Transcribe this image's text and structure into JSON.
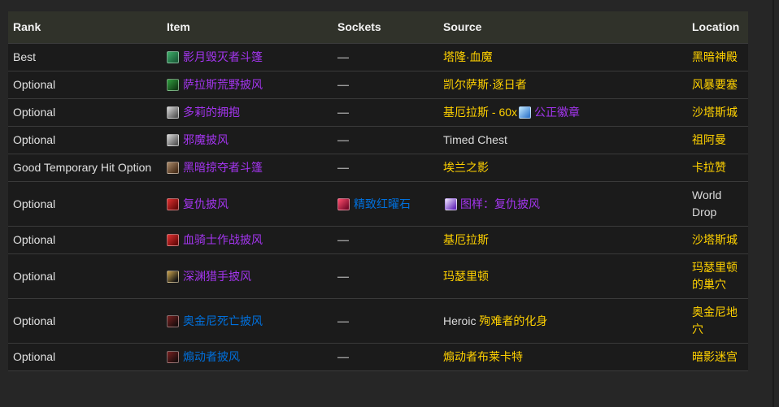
{
  "palette": {
    "epic": "#a335ee",
    "rare": "#0070dd",
    "yellow": "#ffd100",
    "white": "#dcdcdc",
    "gray_dash": "#9d9d9d",
    "header_bg": "#30322a",
    "row_bg": "#1b1b1b",
    "page_bg": "#262626",
    "separator": "#3a3a3a"
  },
  "icons": {
    "cloak-teal": {
      "colors": [
        "#3fae6a",
        "#1b5e3a"
      ]
    },
    "cloak-green": {
      "colors": [
        "#2f9e3f",
        "#123f16"
      ]
    },
    "cloak-gray": {
      "colors": [
        "#d8d8d8",
        "#5a5a5a"
      ]
    },
    "cloak-brown": {
      "colors": [
        "#a98a6a",
        "#4a2f1a"
      ]
    },
    "cloak-red": {
      "colors": [
        "#e03030",
        "#6a0a0a"
      ]
    },
    "cloak-dark": {
      "colors": [
        "#caa24a",
        "#141414"
      ]
    },
    "cloak-darkred": {
      "colors": [
        "#7a2020",
        "#1a0d0d"
      ]
    },
    "gem-red": {
      "colors": [
        "#ff4d6d",
        "#7a0a2a"
      ]
    },
    "badge-justice": {
      "colors": [
        "#bfe8ff",
        "#3c7fd0"
      ]
    },
    "pattern-cloak": {
      "colors": [
        "#f0e8ff",
        "#6a2fbf"
      ]
    }
  },
  "table": {
    "columns": [
      "Rank",
      "Item",
      "Sockets",
      "Source",
      "Location"
    ],
    "rows": [
      {
        "rank": "Best",
        "item": {
          "label": "影月毁灭者斗篷",
          "quality": "epic",
          "icon": "cloak-teal"
        },
        "sockets": [
          {
            "dash": true
          }
        ],
        "source": [
          {
            "text": "塔隆·血魔",
            "color": "yellow",
            "link": true
          }
        ],
        "location": {
          "text": "黑暗神殿",
          "color": "yellow",
          "link": true
        }
      },
      {
        "rank": "Optional",
        "item": {
          "label": "萨拉斯荒野披风",
          "quality": "epic",
          "icon": "cloak-green"
        },
        "sockets": [
          {
            "dash": true
          }
        ],
        "source": [
          {
            "text": "凯尔萨斯·逐日者",
            "color": "yellow",
            "link": true
          }
        ],
        "location": {
          "text": "风暴要塞",
          "color": "yellow",
          "link": true
        }
      },
      {
        "rank": "Optional",
        "item": {
          "label": "多莉的拥抱",
          "quality": "epic",
          "icon": "cloak-gray"
        },
        "sockets": [
          {
            "dash": true
          }
        ],
        "source": [
          {
            "text": "基厄拉斯 - 60x",
            "color": "yellow",
            "link": true
          },
          {
            "icon": "badge-justice"
          },
          {
            "text": "公正徽章",
            "color": "epic",
            "link": true
          }
        ],
        "location": {
          "text": "沙塔斯城",
          "color": "yellow",
          "link": true
        }
      },
      {
        "rank": "Optional",
        "item": {
          "label": "邪魔披风",
          "quality": "epic",
          "icon": "cloak-gray"
        },
        "sockets": [
          {
            "dash": true
          }
        ],
        "source": [
          {
            "text": "Timed Chest",
            "color": "white",
            "link": false
          }
        ],
        "location": {
          "text": "祖阿曼",
          "color": "yellow",
          "link": true
        }
      },
      {
        "rank": "Good Temporary Hit Option",
        "item": {
          "label": "黑暗掠夺者斗篷",
          "quality": "epic",
          "icon": "cloak-brown"
        },
        "sockets": [
          {
            "dash": true
          }
        ],
        "source": [
          {
            "text": "埃兰之影",
            "color": "yellow",
            "link": true
          }
        ],
        "location": {
          "text": "卡拉赞",
          "color": "yellow",
          "link": true
        }
      },
      {
        "rank": "Optional",
        "item": {
          "label": "复仇披风",
          "quality": "epic",
          "icon": "cloak-red"
        },
        "sockets": [
          {
            "icon": "gem-red"
          },
          {
            "text": "精致红曜石",
            "color": "rare",
            "link": true
          }
        ],
        "source": [
          {
            "icon": "pattern-cloak"
          },
          {
            "text": "图样：复仇披风",
            "color": "epic",
            "link": true
          }
        ],
        "location": {
          "text": "World Drop",
          "color": "white",
          "link": false
        }
      },
      {
        "rank": "Optional",
        "item": {
          "label": "血骑士作战披风",
          "quality": "epic",
          "icon": "cloak-red"
        },
        "sockets": [
          {
            "dash": true
          }
        ],
        "source": [
          {
            "text": "基厄拉斯",
            "color": "yellow",
            "link": true
          }
        ],
        "location": {
          "text": "沙塔斯城",
          "color": "yellow",
          "link": true
        }
      },
      {
        "rank": "Optional",
        "item": {
          "label": "深渊猎手披风",
          "quality": "epic",
          "icon": "cloak-dark"
        },
        "sockets": [
          {
            "dash": true
          }
        ],
        "source": [
          {
            "text": "玛瑟里顿",
            "color": "yellow",
            "link": true
          }
        ],
        "location": {
          "text": "玛瑟里顿的巢穴",
          "color": "yellow",
          "link": true
        }
      },
      {
        "rank": "Optional",
        "item": {
          "label": "奥金尼死亡披风",
          "quality": "rare",
          "icon": "cloak-darkred"
        },
        "sockets": [
          {
            "dash": true
          }
        ],
        "source": [
          {
            "text": "Heroic ",
            "color": "white",
            "link": false
          },
          {
            "text": "殉难者的化身",
            "color": "yellow",
            "link": true
          }
        ],
        "location": {
          "text": "奥金尼地穴",
          "color": "yellow",
          "link": true
        }
      },
      {
        "rank": "Optional",
        "item": {
          "label": "煽动者披风",
          "quality": "rare",
          "icon": "cloak-darkred"
        },
        "sockets": [
          {
            "dash": true
          }
        ],
        "source": [
          {
            "text": "煽动者布莱卡特",
            "color": "yellow",
            "link": true
          }
        ],
        "location": {
          "text": "暗影迷宫",
          "color": "yellow",
          "link": true
        }
      }
    ]
  },
  "misc": {
    "dash_glyph": "—"
  }
}
